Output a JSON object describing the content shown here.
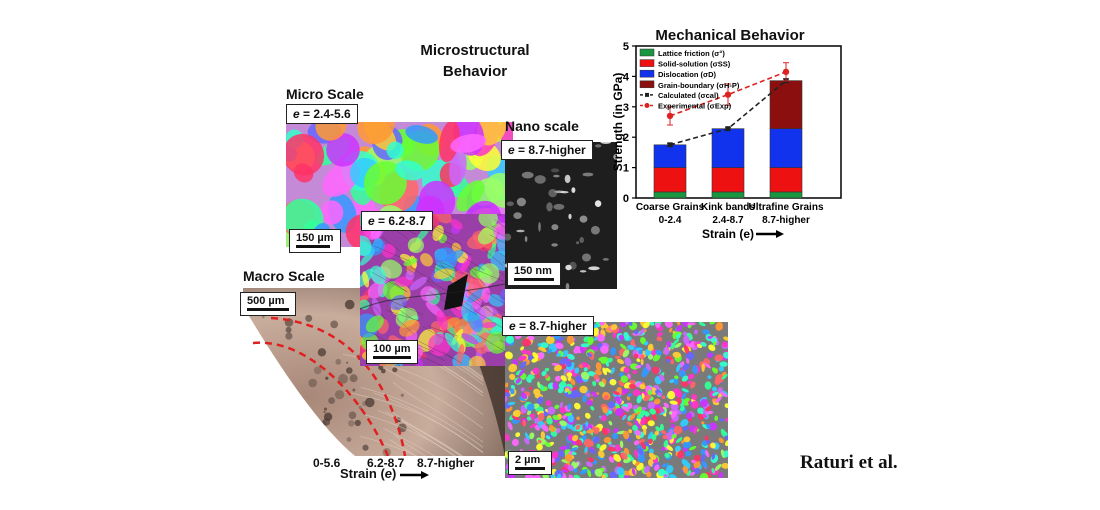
{
  "titles": {
    "microstructural_line1": "Microstructural",
    "microstructural_line2": "Behavior",
    "mechanical": "Mechanical Behavior",
    "micro_scale": "Micro Scale",
    "nano_scale": "Nano scale",
    "macro_scale": "Macro Scale"
  },
  "panels": {
    "micro": {
      "strain_label": "e",
      "strain_range": " = 2.4-5.6",
      "scale_bar": "150 µm"
    },
    "mid": {
      "strain_label": "e",
      "strain_range": " = 6.2-8.7",
      "scale_bar": "100 µm"
    },
    "nano": {
      "strain_label": "e",
      "strain_range": " = 8.7-higher",
      "scale_bar": "150 nm"
    },
    "ebsd": {
      "strain_label": "e",
      "strain_range": " = 8.7-higher",
      "scale_bar": "2 µm"
    },
    "macro": {
      "scale_bar": "500 µm",
      "strain_ticks": [
        "0-5.6",
        "6.2-8.7",
        "8.7-higher"
      ],
      "strain_axis_prefix": "Strain (",
      "strain_axis_var": "e",
      "strain_axis_suffix": ")"
    }
  },
  "colors": {
    "lattice": "#1a9641",
    "solid": "#ee1111",
    "dislocation": "#1133ee",
    "grain_boundary": "#8b0f0f",
    "calc": "#222222",
    "exp": "#dd2222",
    "boundary_dash": "#e02020"
  },
  "chart_data": {
    "type": "bar",
    "stacked": true,
    "title": "Mechanical Behavior",
    "ylabel": "Strength (in GPa)",
    "xlabel": "Strain (e)",
    "ylim": [
      0,
      5
    ],
    "yticks": [
      "0",
      "1",
      "2",
      "3",
      "4",
      "5"
    ],
    "categories": [
      {
        "line1": "Coarse Grains",
        "line2": "0-2.4"
      },
      {
        "line1": "Kink bands",
        "line2": "2.4-8.7"
      },
      {
        "line1": "Ultrafine Grains",
        "line2": "8.7-higher"
      }
    ],
    "series": [
      {
        "name": "Lattice friction (σ°)",
        "values": [
          0.2,
          0.2,
          0.2
        ]
      },
      {
        "name": "Solid-solution (σSS)",
        "values": [
          0.8,
          0.8,
          0.8
        ]
      },
      {
        "name": "Dislocation (σD)",
        "values": [
          0.75,
          1.28,
          1.28
        ]
      },
      {
        "name": "Grain-boundary (σH-P)",
        "values": [
          0,
          0,
          1.58
        ]
      }
    ],
    "lines": [
      {
        "name": "Calculated (σcal)",
        "values": [
          1.75,
          2.28,
          3.86
        ],
        "errors": [
          0.05,
          0.05,
          0.06
        ]
      },
      {
        "name": "Experimental (σExp)",
        "values": [
          2.7,
          3.4,
          4.15
        ],
        "errors": [
          0.3,
          0.35,
          0.3
        ]
      }
    ],
    "legend_position": "top-left"
  },
  "credit": "Raturi et al."
}
